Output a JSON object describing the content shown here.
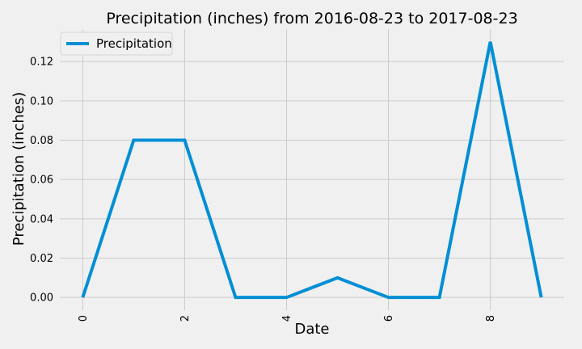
{
  "chart_data": {
    "type": "line",
    "title": "Precipitation (inches) from 2016-08-23 to 2017-08-23",
    "xlabel": "Date",
    "ylabel": "Precipitation (inches)",
    "x": [
      0,
      1,
      2,
      3,
      4,
      5,
      6,
      7,
      8,
      9
    ],
    "series": [
      {
        "name": "Precipitation",
        "color": "#008fd5",
        "values": [
          0.0,
          0.08,
          0.08,
          0.0,
          0.0,
          0.01,
          0.0,
          0.0,
          0.13,
          0.0
        ]
      }
    ],
    "xlim": [
      -0.45,
      9.45
    ],
    "ylim": [
      -0.0065,
      0.1365
    ],
    "xticks": [
      "0",
      "2",
      "4",
      "6",
      "8"
    ],
    "yticks": [
      "0.00",
      "0.02",
      "0.04",
      "0.06",
      "0.08",
      "0.10",
      "0.12"
    ],
    "xtick_rotation": "vertical",
    "grid": true,
    "legend_placement": "top-left"
  }
}
